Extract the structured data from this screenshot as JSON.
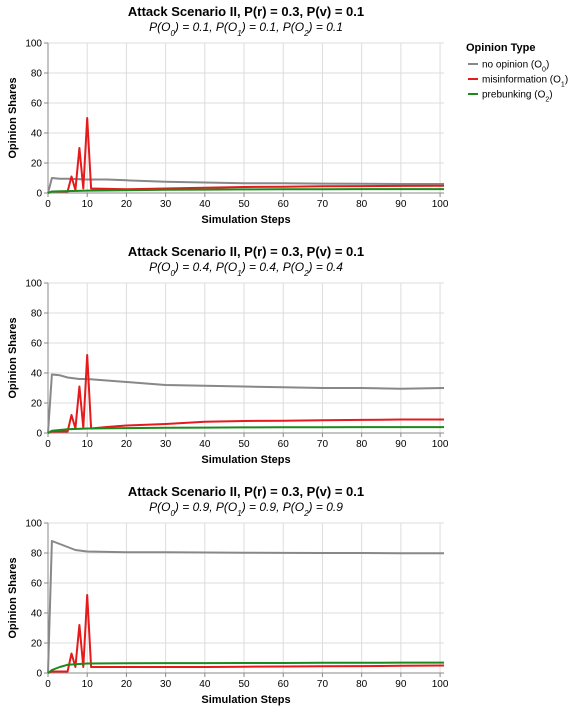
{
  "legend": {
    "title": "Opinion Type",
    "entries": [
      {
        "key": "o0",
        "label": "no opinion (O",
        "sub": "0",
        "close": ")",
        "color": "#888888"
      },
      {
        "key": "o1",
        "label": "misinformation (O",
        "sub": "1",
        "close": ")",
        "color": "#e41a1c"
      },
      {
        "key": "o2",
        "label": "prebunking (O",
        "sub": "2",
        "close": ")",
        "color": "#1a8a1a"
      }
    ]
  },
  "chart_data": [
    {
      "type": "line",
      "title": "Attack Scenario II, P(r) = 0.3, P(v) = 0.1",
      "subtitle": {
        "parts": [
          {
            "t": "P(O"
          },
          {
            "s": "0"
          },
          {
            "t": ") = 0.1, P(O"
          },
          {
            "s": "1"
          },
          {
            "t": ") = 0.1, P(O"
          },
          {
            "s": "2"
          },
          {
            "t": ") = 0.1"
          }
        ]
      },
      "xlabel": "Simulation Steps",
      "ylabel": "Opinion Shares",
      "xlim": [
        0,
        101
      ],
      "ylim": [
        0,
        100
      ],
      "xticks": [
        0,
        10,
        20,
        30,
        40,
        50,
        60,
        70,
        80,
        90,
        100
      ],
      "yticks": [
        0,
        20,
        40,
        60,
        80,
        100
      ],
      "grid": true,
      "series": [
        {
          "key": "o0",
          "points": [
            [
              0,
              0
            ],
            [
              1,
              10
            ],
            [
              3,
              9.5
            ],
            [
              5,
              9.5
            ],
            [
              10,
              9
            ],
            [
              15,
              9
            ],
            [
              20,
              8.5
            ],
            [
              30,
              7.5
            ],
            [
              40,
              7
            ],
            [
              50,
              6.5
            ],
            [
              60,
              6.5
            ],
            [
              70,
              6.3
            ],
            [
              80,
              6.2
            ],
            [
              90,
              6
            ],
            [
              101,
              6
            ]
          ]
        },
        {
          "key": "o1",
          "points": [
            [
              0,
              0
            ],
            [
              1,
              1
            ],
            [
              5,
              1
            ],
            [
              6,
              11
            ],
            [
              7,
              2
            ],
            [
              8,
              30
            ],
            [
              9,
              3
            ],
            [
              10,
              50
            ],
            [
              11,
              3
            ],
            [
              20,
              2.5
            ],
            [
              30,
              3
            ],
            [
              40,
              3.5
            ],
            [
              50,
              4
            ],
            [
              60,
              4.2
            ],
            [
              70,
              4.5
            ],
            [
              80,
              4.6
            ],
            [
              90,
              4.7
            ],
            [
              101,
              4.8
            ]
          ]
        },
        {
          "key": "o2",
          "points": [
            [
              0,
              0
            ],
            [
              1,
              1
            ],
            [
              5,
              1.3
            ],
            [
              10,
              1.6
            ],
            [
              20,
              1.9
            ],
            [
              30,
              2.1
            ],
            [
              40,
              2.3
            ],
            [
              50,
              2.4
            ],
            [
              60,
              2.5
            ],
            [
              70,
              2.5
            ],
            [
              80,
              2.6
            ],
            [
              90,
              2.6
            ],
            [
              101,
              2.6
            ]
          ]
        }
      ]
    },
    {
      "type": "line",
      "title": "Attack Scenario II, P(r) = 0.3, P(v) = 0.1",
      "subtitle": {
        "parts": [
          {
            "t": "P(O"
          },
          {
            "s": "0"
          },
          {
            "t": ") = 0.4, P(O"
          },
          {
            "s": "1"
          },
          {
            "t": ") = 0.4, P(O"
          },
          {
            "s": "2"
          },
          {
            "t": ") = 0.4"
          }
        ]
      },
      "xlabel": "Simulation Steps",
      "ylabel": "Opinion Shares",
      "xlim": [
        0,
        101
      ],
      "ylim": [
        0,
        100
      ],
      "xticks": [
        0,
        10,
        20,
        30,
        40,
        50,
        60,
        70,
        80,
        90,
        100
      ],
      "yticks": [
        0,
        20,
        40,
        60,
        80,
        100
      ],
      "grid": true,
      "series": [
        {
          "key": "o0",
          "points": [
            [
              0,
              0
            ],
            [
              1,
              39
            ],
            [
              3,
              38.5
            ],
            [
              5,
              37
            ],
            [
              8,
              36
            ],
            [
              10,
              36
            ],
            [
              15,
              35
            ],
            [
              20,
              34
            ],
            [
              25,
              33
            ],
            [
              30,
              32
            ],
            [
              40,
              31.5
            ],
            [
              50,
              31
            ],
            [
              60,
              30.5
            ],
            [
              70,
              30
            ],
            [
              80,
              30
            ],
            [
              90,
              29.5
            ],
            [
              101,
              30
            ]
          ]
        },
        {
          "key": "o1",
          "points": [
            [
              0,
              0
            ],
            [
              1,
              1
            ],
            [
              5,
              1
            ],
            [
              6,
              12
            ],
            [
              7,
              3
            ],
            [
              8,
              31
            ],
            [
              9,
              3.5
            ],
            [
              10,
              52
            ],
            [
              11,
              3
            ],
            [
              15,
              4
            ],
            [
              20,
              5
            ],
            [
              30,
              6
            ],
            [
              40,
              7.5
            ],
            [
              50,
              8
            ],
            [
              60,
              8.2
            ],
            [
              70,
              8.5
            ],
            [
              80,
              8.7
            ],
            [
              90,
              9
            ],
            [
              101,
              9
            ]
          ]
        },
        {
          "key": "o2",
          "points": [
            [
              0,
              0
            ],
            [
              1,
              1.5
            ],
            [
              5,
              2.5
            ],
            [
              10,
              3
            ],
            [
              20,
              3.3
            ],
            [
              30,
              3.5
            ],
            [
              40,
              3.6
            ],
            [
              50,
              3.7
            ],
            [
              60,
              3.8
            ],
            [
              70,
              3.8
            ],
            [
              80,
              3.9
            ],
            [
              90,
              3.9
            ],
            [
              101,
              3.9
            ]
          ]
        }
      ]
    },
    {
      "type": "line",
      "title": "Attack Scenario II, P(r) = 0.3, P(v) = 0.1",
      "subtitle": {
        "parts": [
          {
            "t": "P(O"
          },
          {
            "s": "0"
          },
          {
            "t": ") = 0.9, P(O"
          },
          {
            "s": "1"
          },
          {
            "t": ") = 0.9, P(O"
          },
          {
            "s": "2"
          },
          {
            "t": ") = 0.9"
          }
        ]
      },
      "xlabel": "Simulation Steps",
      "ylabel": "Opinion Shares",
      "xlim": [
        0,
        101
      ],
      "ylim": [
        0,
        100
      ],
      "xticks": [
        0,
        10,
        20,
        30,
        40,
        50,
        60,
        70,
        80,
        90,
        100
      ],
      "yticks": [
        0,
        20,
        40,
        60,
        80,
        100
      ],
      "grid": true,
      "series": [
        {
          "key": "o0",
          "points": [
            [
              0,
              0
            ],
            [
              1,
              88
            ],
            [
              3,
              86
            ],
            [
              5,
              84
            ],
            [
              7,
              82
            ],
            [
              10,
              81
            ],
            [
              20,
              80.5
            ],
            [
              30,
              80.5
            ],
            [
              40,
              80.3
            ],
            [
              50,
              80.2
            ],
            [
              60,
              80.1
            ],
            [
              70,
              80
            ],
            [
              80,
              80
            ],
            [
              90,
              79.8
            ],
            [
              101,
              79.8
            ]
          ]
        },
        {
          "key": "o1",
          "points": [
            [
              0,
              0
            ],
            [
              1,
              1
            ],
            [
              5,
              1
            ],
            [
              6,
              13
            ],
            [
              7,
              4
            ],
            [
              8,
              32
            ],
            [
              9,
              4
            ],
            [
              10,
              52
            ],
            [
              11,
              4
            ],
            [
              20,
              4
            ],
            [
              30,
              4
            ],
            [
              40,
              4
            ],
            [
              50,
              4.2
            ],
            [
              60,
              4.3
            ],
            [
              70,
              4.5
            ],
            [
              80,
              4.6
            ],
            [
              90,
              4.8
            ],
            [
              101,
              5
            ]
          ]
        },
        {
          "key": "o2",
          "points": [
            [
              0,
              0
            ],
            [
              1,
              2
            ],
            [
              3,
              4
            ],
            [
              5,
              5.5
            ],
            [
              8,
              6
            ],
            [
              10,
              6.3
            ],
            [
              20,
              6.5
            ],
            [
              30,
              6.6
            ],
            [
              40,
              6.6
            ],
            [
              50,
              6.7
            ],
            [
              60,
              6.7
            ],
            [
              70,
              6.8
            ],
            [
              80,
              6.8
            ],
            [
              90,
              6.9
            ],
            [
              101,
              6.9
            ]
          ]
        }
      ]
    }
  ]
}
